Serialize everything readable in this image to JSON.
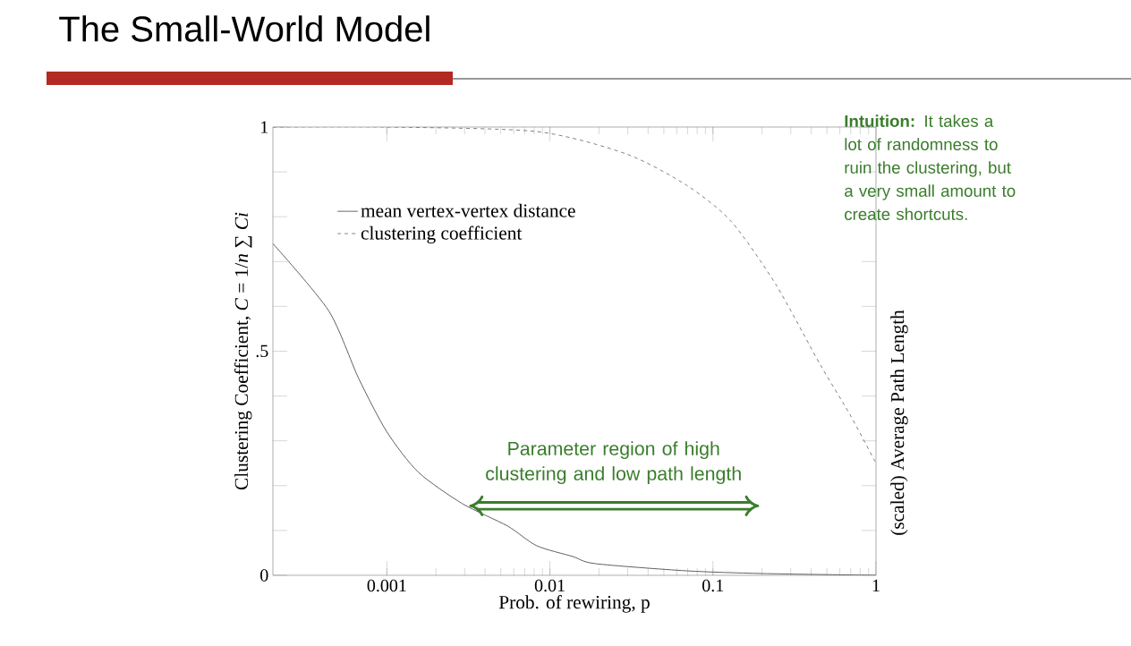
{
  "chart_data": {
    "type": "line",
    "title": "The Small-World Model",
    "xlabel": "Prob. of rewiring, p",
    "ylabel": "Clustering Coefficient, *C* = 1/*n* ∑ *Ci*",
    "y2label": "(scaled) Average Path Length",
    "annotations": [
      "**Intuition:** It takes a lot of randomness to ruin the clustering, but a very small amount to create shortcuts.",
      {
        "text": "Parameter region of high clustering and low path length",
        "x": 0.0032,
        "y": 0.155
      }
    ],
    "log": "x",
    "xlim": [
      0.0002,
      1
    ],
    "xticks": [
      0.001,
      0.01,
      0.1,
      1
    ],
    "ylim": [
      0,
      1
    ],
    "yticks": [
      0,
      {
        "value": 0.1,
        "label": null
      },
      {
        "value": 0.2,
        "label": null
      },
      {
        "value": 0.3,
        "label": null
      },
      {
        "value": 0.4,
        "label": null
      },
      {
        "value": 0.5,
        "label": ".5"
      },
      {
        "value": 0.6,
        "label": null
      },
      {
        "value": 0.7,
        "label": null
      },
      {
        "value": 0.8,
        "label": null
      },
      {
        "value": 0.9,
        "label": null
      },
      1
    ],
    "legend": "top left",
    "marker": "none",
    "series": [
      {
        "name": "mean vertex-vertex distance",
        "color": "#555555",
        "line_style": "solid",
        "x": [
          0.0002,
          0.00044,
          0.00067,
          0.001,
          0.00156,
          0.0029,
          0.0055,
          0.0083,
          0.0138,
          0.019,
          0.069,
          0.2,
          1
        ],
        "values": [
          0.74,
          0.59,
          0.44,
          0.32,
          0.23,
          0.16,
          0.11,
          0.066,
          0.042,
          0.026,
          0.01,
          0.004,
          0.0
        ]
      },
      {
        "name": "clustering coefficient",
        "color": "#777777",
        "line_style": "dashed",
        "x": [
          0.0002,
          0.001,
          0.0083,
          0.0294,
          0.069,
          0.129,
          0.242,
          0.455,
          0.689,
          1
        ],
        "values": [
          1.0,
          1.0,
          0.99,
          0.94,
          0.87,
          0.79,
          0.65,
          0.47,
          0.36,
          0.25
        ]
      }
    ]
  }
}
